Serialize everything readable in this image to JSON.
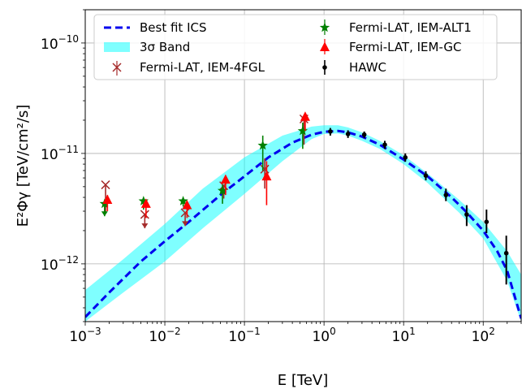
{
  "chart_data": {
    "type": "scatter",
    "xlabel": "E [TeV]",
    "ylabel": "E²Φγ [TeV/cm²/s]",
    "xscale": "log",
    "yscale": "log",
    "xlim": [
      0.001,
      300
    ],
    "ylim": [
      3e-13,
      2e-10
    ],
    "grid": true,
    "legend_position": "top",
    "x_ticks": [
      {
        "value": 0.001,
        "base": "10",
        "exp": "−3"
      },
      {
        "value": 0.01,
        "base": "10",
        "exp": "−2"
      },
      {
        "value": 0.1,
        "base": "10",
        "exp": "−1"
      },
      {
        "value": 1,
        "base": "10",
        "exp": "0"
      },
      {
        "value": 10,
        "base": "10",
        "exp": "1"
      },
      {
        "value": 100,
        "base": "10",
        "exp": "2"
      }
    ],
    "y_ticks": [
      {
        "value": 1e-12,
        "base": "10",
        "exp": "−12"
      },
      {
        "value": 1e-11,
        "base": "10",
        "exp": "−11"
      },
      {
        "value": 1e-10,
        "base": "10",
        "exp": "−10"
      }
    ],
    "band": {
      "name": "3σ Band",
      "color": "#00ffff",
      "x": [
        0.001,
        0.003,
        0.01,
        0.03,
        0.1,
        0.3,
        0.7,
        1.0,
        1.5,
        2.0,
        3.0,
        5.0,
        10,
        20,
        50,
        100,
        200,
        300
      ],
      "lower": [
        3e-13,
        5.5e-13,
        1.05e-12,
        2.1e-12,
        4.3e-12,
        8.5e-12,
        1.35e-11,
        1.5e-11,
        1.52e-11,
        1.45e-11,
        1.3e-11,
        1.1e-11,
        8e-12,
        5.4e-12,
        2.9e-12,
        1.7e-12,
        7e-13,
        3e-13
      ],
      "upper": [
        5.8e-13,
        1.1e-12,
        2.3e-12,
        4.8e-12,
        9.2e-12,
        1.45e-11,
        1.75e-11,
        1.8e-11,
        1.8e-11,
        1.72e-11,
        1.55e-11,
        1.3e-11,
        9.6e-12,
        6.6e-12,
        3.8e-12,
        2.4e-12,
        1.3e-12,
        8e-13
      ]
    },
    "best_fit": {
      "name": "Best fit ICS",
      "color": "#0000ee",
      "x": [
        0.001,
        0.002,
        0.005,
        0.01,
        0.02,
        0.05,
        0.1,
        0.2,
        0.4,
        0.7,
        1.0,
        1.5,
        2.0,
        3.0,
        5.0,
        10,
        20,
        40,
        60,
        100,
        150,
        200,
        300
      ],
      "y": [
        3.3e-13,
        5.5e-13,
        1.05e-12,
        1.6e-12,
        2.4e-12,
        4.2e-12,
        6.2e-12,
        9.2e-12,
        1.25e-11,
        1.48e-11,
        1.57e-11,
        1.6e-11,
        1.55e-11,
        1.42e-11,
        1.2e-11,
        8.8e-12,
        6.2e-12,
        4e-12,
        3e-12,
        2e-12,
        1.3e-12,
        8.7e-13,
        3.2e-13
      ]
    },
    "series": [
      {
        "name": "Fermi-LAT, IEM-4FGL",
        "color": "#a52a2a",
        "marker": "x",
        "points": [
          {
            "x": 0.0018,
            "y": 5.2e-12,
            "lo": 2.9e-12,
            "hi": 5.2e-12,
            "ul": false
          },
          {
            "x": 0.0056,
            "y": 2.8e-12,
            "lo": 2.1e-12,
            "hi": 2.8e-12,
            "ul": true
          },
          {
            "x": 0.018,
            "y": 2.9e-12,
            "lo": 2.2e-12,
            "hi": 2.9e-12,
            "ul": true
          },
          {
            "x": 0.055,
            "y": 5.1e-12,
            "lo": 3.9e-12,
            "hi": 5.1e-12,
            "ul": false
          },
          {
            "x": 0.18,
            "y": 7.2e-12,
            "lo": 4.8e-12,
            "hi": 9e-12,
            "ul": false
          },
          {
            "x": 0.56,
            "y": 2.05e-11,
            "lo": 1.2e-11,
            "hi": 2.2e-11,
            "ul": false
          }
        ]
      },
      {
        "name": "Fermi-LAT, IEM-ALT1",
        "color": "#008000",
        "marker": "star",
        "points": [
          {
            "x": 0.00175,
            "y": 3.5e-12,
            "lo": 2.7e-12,
            "hi": 3.5e-12,
            "ul": true
          },
          {
            "x": 0.0054,
            "y": 3.7e-12,
            "lo": 3.1e-12,
            "hi": 3.9e-12,
            "ul": false
          },
          {
            "x": 0.017,
            "y": 3.7e-12,
            "lo": 3.3e-12,
            "hi": 3.9e-12,
            "ul": false
          },
          {
            "x": 0.053,
            "y": 4.6e-12,
            "lo": 3.5e-12,
            "hi": 5.2e-12,
            "ul": false
          },
          {
            "x": 0.17,
            "y": 1.18e-11,
            "lo": 7e-12,
            "hi": 1.45e-11,
            "ul": false
          },
          {
            "x": 0.54,
            "y": 1.6e-11,
            "lo": 1.1e-11,
            "hi": 1.9e-11,
            "ul": false
          }
        ]
      },
      {
        "name": "Fermi-LAT, IEM-GC",
        "color": "#ff0000",
        "marker": "triangle",
        "points": [
          {
            "x": 0.0019,
            "y": 3.8e-12,
            "lo": 3e-12,
            "hi": 4.2e-12,
            "ul": false
          },
          {
            "x": 0.0058,
            "y": 3.5e-12,
            "lo": 2.6e-12,
            "hi": 3.8e-12,
            "ul": false
          },
          {
            "x": 0.019,
            "y": 3.4e-12,
            "lo": 2.6e-12,
            "hi": 3.7e-12,
            "ul": false
          },
          {
            "x": 0.058,
            "y": 5.8e-12,
            "lo": 4.2e-12,
            "hi": 6e-12,
            "ul": false
          },
          {
            "x": 0.19,
            "y": 6.2e-12,
            "lo": 3.4e-12,
            "hi": 8.5e-12,
            "ul": false
          },
          {
            "x": 0.58,
            "y": 2.15e-11,
            "lo": 1.6e-11,
            "hi": 2.3e-11,
            "ul": false
          }
        ]
      },
      {
        "name": "HAWC",
        "color": "#000000",
        "marker": "dot",
        "points": [
          {
            "x": 1.2,
            "y": 1.58e-11,
            "lo": 1.45e-11,
            "hi": 1.7e-11,
            "ul": false
          },
          {
            "x": 2.0,
            "y": 1.5e-11,
            "lo": 1.38e-11,
            "hi": 1.62e-11,
            "ul": false
          },
          {
            "x": 3.2,
            "y": 1.48e-11,
            "lo": 1.38e-11,
            "hi": 1.58e-11,
            "ul": false
          },
          {
            "x": 5.8,
            "y": 1.2e-11,
            "lo": 1.1e-11,
            "hi": 1.3e-11,
            "ul": false
          },
          {
            "x": 10.5,
            "y": 9.2e-12,
            "lo": 8.4e-12,
            "hi": 1e-11,
            "ul": false
          },
          {
            "x": 19,
            "y": 6.3e-12,
            "lo": 5.7e-12,
            "hi": 6.9e-12,
            "ul": false
          },
          {
            "x": 34,
            "y": 4.2e-12,
            "lo": 3.7e-12,
            "hi": 4.8e-12,
            "ul": false
          },
          {
            "x": 62,
            "y": 2.8e-12,
            "lo": 2.2e-12,
            "hi": 3.4e-12,
            "ul": false
          },
          {
            "x": 110,
            "y": 2.4e-12,
            "lo": 1.9e-12,
            "hi": 3.1e-12,
            "ul": false
          },
          {
            "x": 195,
            "y": 1.25e-12,
            "lo": 6.5e-13,
            "hi": 1.8e-12,
            "ul": false
          }
        ]
      }
    ],
    "legend": {
      "best_fit_label": "Best fit ICS",
      "band_label": "3σ Band",
      "fgl_label": "Fermi-LAT, IEM-4FGL",
      "alt1_label": "Fermi-LAT, IEM-ALT1",
      "gc_label": "Fermi-LAT, IEM-GC",
      "hawc_label": "HAWC"
    }
  }
}
